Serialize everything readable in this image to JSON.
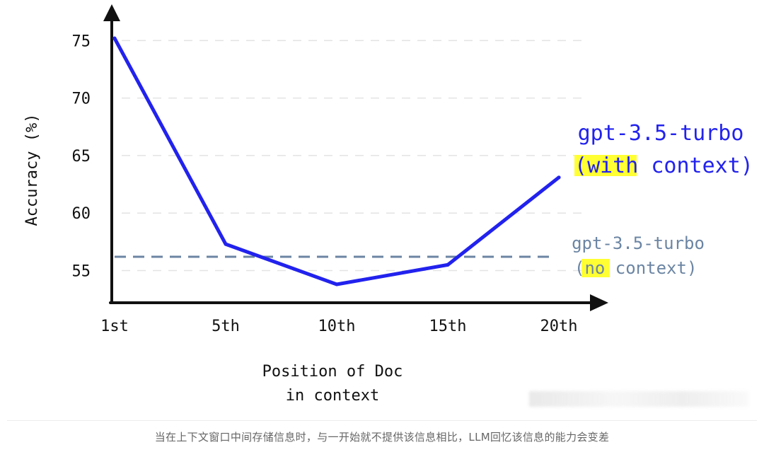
{
  "chart_data": {
    "type": "line",
    "categories": [
      "1st",
      "5th",
      "10th",
      "15th",
      "20th"
    ],
    "series": [
      {
        "name": "gpt-3.5-turbo (with context)",
        "label_line1": "gpt-3.5-turbo",
        "label_line2_pre": "(",
        "label_highlight": "with",
        "label_line2_post": " context)",
        "color": "#2222ee",
        "values": [
          75.2,
          57.3,
          53.8,
          55.5,
          63.1
        ]
      },
      {
        "name": "gpt-3.5-turbo (no context)",
        "label_line1": "gpt-3.5-turbo",
        "label_line2_pre": "(",
        "label_highlight": "no",
        "label_line2_post": " context)",
        "color": "#6b85a3",
        "style": "dashed",
        "value": 56.2
      }
    ],
    "yticks": [
      "75",
      "70",
      "65",
      "60",
      "55"
    ],
    "ytick_values": [
      75,
      70,
      65,
      60,
      55
    ],
    "ylabel": "Accuracy (%)",
    "xlabel_line1": "Position of Doc",
    "xlabel_line2": "in context",
    "ylim": [
      52.2,
      77.3
    ],
    "grid": "horizontal-dashed",
    "highlight_color": "#ffff33"
  },
  "caption": "当在上下文窗口中间存储信息时，与一开始就不提供该信息相比，LLM回忆该信息的能力会变差"
}
